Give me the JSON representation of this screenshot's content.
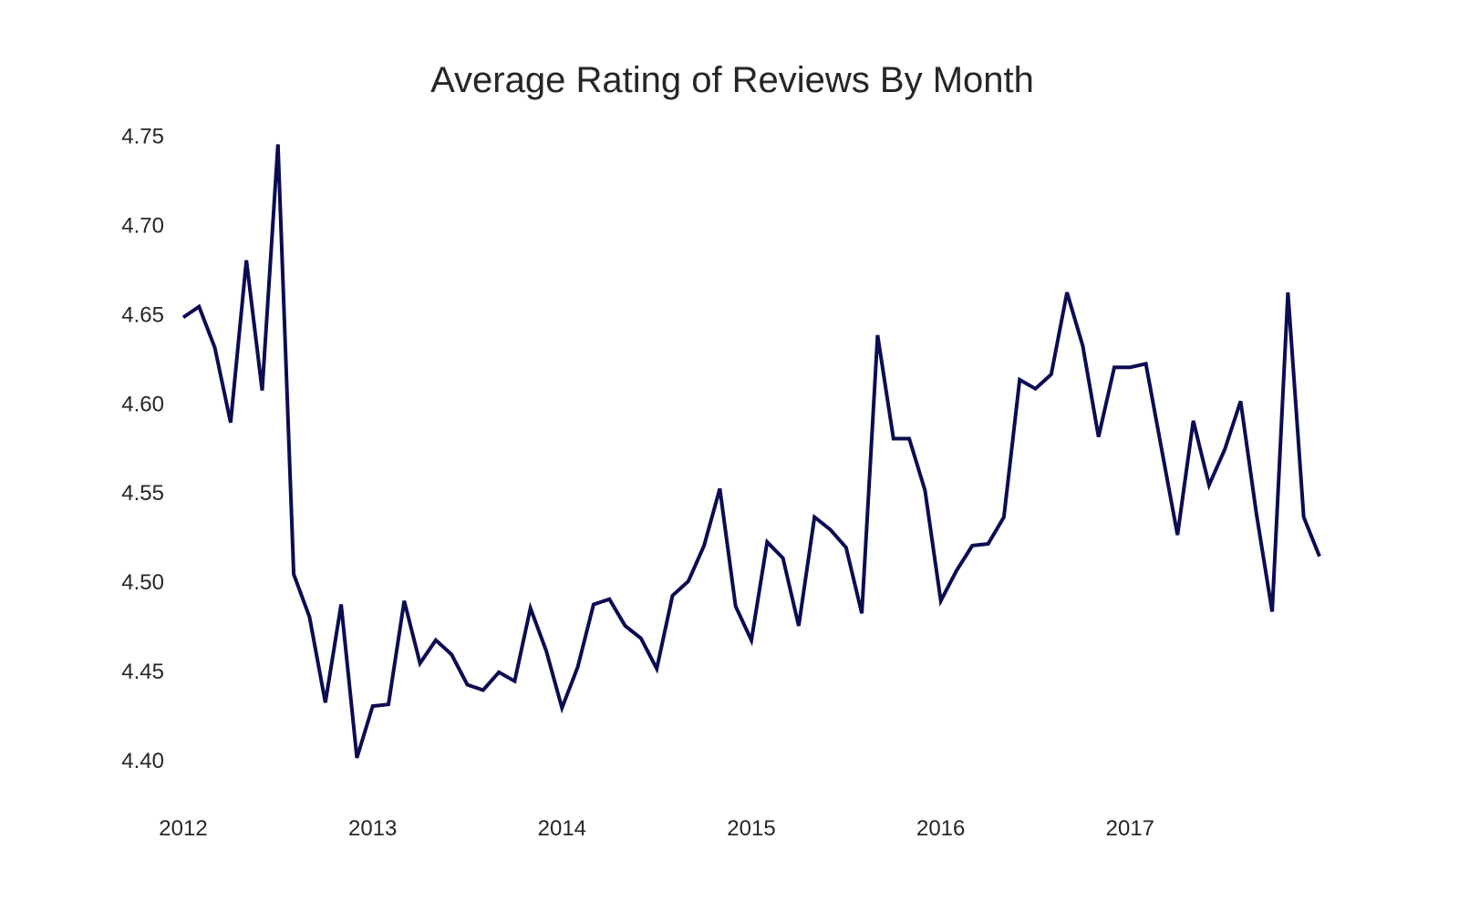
{
  "chart_data": {
    "type": "line",
    "title": "Average Rating of Reviews By Month",
    "xlabel": "",
    "ylabel": "",
    "x": [
      "2012-01",
      "2012-02",
      "2012-03",
      "2012-04",
      "2012-05",
      "2012-06",
      "2012-07",
      "2012-08",
      "2012-09",
      "2012-10",
      "2012-11",
      "2012-12",
      "2013-01",
      "2013-02",
      "2013-03",
      "2013-04",
      "2013-05",
      "2013-06",
      "2013-07",
      "2013-08",
      "2013-09",
      "2013-10",
      "2013-11",
      "2013-12",
      "2014-01",
      "2014-02",
      "2014-03",
      "2014-04",
      "2014-05",
      "2014-06",
      "2014-07",
      "2014-08",
      "2014-09",
      "2014-10",
      "2014-11",
      "2014-12",
      "2015-01",
      "2015-02",
      "2015-03",
      "2015-04",
      "2015-05",
      "2015-06",
      "2015-07",
      "2015-08",
      "2015-09",
      "2015-10",
      "2015-11",
      "2015-12",
      "2016-01",
      "2016-02",
      "2016-03",
      "2016-04",
      "2016-05",
      "2016-06",
      "2016-07",
      "2016-08",
      "2016-09",
      "2016-10",
      "2016-11",
      "2016-12",
      "2017-01",
      "2017-02",
      "2017-03",
      "2017-04",
      "2017-05",
      "2017-06",
      "2017-07",
      "2017-08",
      "2017-09",
      "2017-10",
      "2017-11",
      "2017-12",
      "2018-01"
    ],
    "series": [
      {
        "values": [
          4.648,
          4.654,
          4.631,
          4.589,
          4.68,
          4.607,
          4.745,
          4.504,
          4.48,
          4.432,
          4.487,
          4.401,
          4.43,
          4.431,
          4.489,
          4.454,
          4.467,
          4.459,
          4.442,
          4.439,
          4.449,
          4.444,
          4.485,
          4.461,
          4.429,
          4.452,
          4.487,
          4.49,
          4.475,
          4.468,
          4.451,
          4.492,
          4.5,
          4.52,
          4.552,
          4.486,
          4.467,
          4.522,
          4.513,
          4.475,
          4.536,
          4.529,
          4.519,
          4.482,
          4.638,
          4.58,
          4.58,
          4.551,
          4.489,
          4.506,
          4.52,
          4.521,
          4.536,
          4.613,
          4.608,
          4.616,
          4.662,
          4.632,
          4.581,
          4.62,
          4.62,
          4.622,
          4.574,
          4.526,
          4.59,
          4.554,
          4.574,
          4.601,
          4.538,
          4.483,
          4.662,
          4.536,
          4.514
        ],
        "color": "#0c0c52"
      }
    ],
    "x_ticks": [
      "2012",
      "2013",
      "2014",
      "2015",
      "2016",
      "2017"
    ],
    "y_ticks": [
      "4.40",
      "4.45",
      "4.50",
      "4.55",
      "4.60",
      "4.65",
      "4.70",
      "4.75"
    ],
    "ylim": [
      4.38,
      4.757
    ],
    "grid": false,
    "legend": "none"
  }
}
